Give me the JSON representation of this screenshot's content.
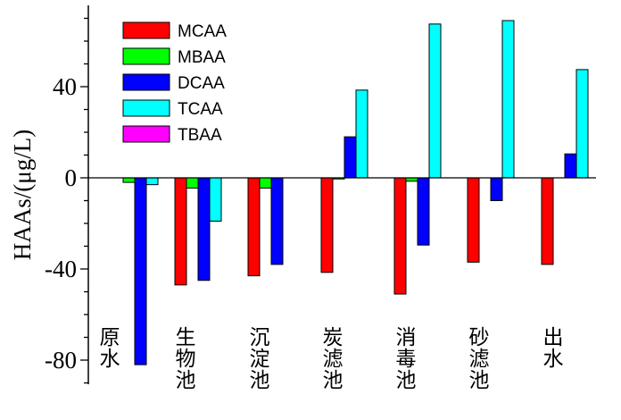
{
  "chart_data": {
    "type": "bar",
    "categories": [
      "原水",
      "生物池",
      "沉淀池",
      "炭滤池",
      "消毒池",
      "砂滤池",
      "出水"
    ],
    "series": [
      {
        "name": "MCAA",
        "color": "#ff0000",
        "values": [
          0,
          -47,
          -43,
          -41.5,
          -51,
          -37,
          -38
        ]
      },
      {
        "name": "MBAA",
        "color": "#00ff00",
        "values": [
          -2,
          -4.5,
          -4.5,
          -0.5,
          -1.5,
          0,
          0
        ]
      },
      {
        "name": "DCAA",
        "color": "#0000ff",
        "values": [
          -82,
          -45,
          -38,
          18,
          -29.5,
          -10,
          10.5
        ]
      },
      {
        "name": "TCAA",
        "color": "#00ffff",
        "values": [
          -3,
          -19,
          0,
          38.5,
          67.5,
          69,
          47.5
        ]
      },
      {
        "name": "TBAA",
        "color": "#ff00ff",
        "values": [
          0,
          0,
          0,
          0,
          0,
          0,
          0
        ]
      }
    ],
    "xlabel": "",
    "ylabel": "HAAs/(μg/L)",
    "ylim": [
      -91,
      76
    ],
    "yticks": [
      "-80",
      "-40",
      "0",
      "40"
    ],
    "grid": false,
    "legend": "top-left"
  }
}
